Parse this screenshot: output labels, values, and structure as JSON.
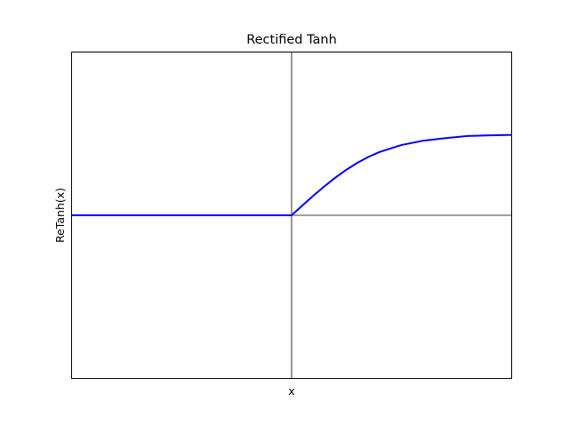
{
  "chart_data": {
    "type": "line",
    "title": "Rectified Tanh",
    "xlabel": "x",
    "ylabel": "ReTanh(x)",
    "xlim": [
      -5,
      5
    ],
    "ylim": [
      -1,
      1
    ],
    "grid": false,
    "ticks_visible": false,
    "reference_lines": {
      "x": 0,
      "y": 0
    },
    "series": [
      {
        "color": "#0000ff",
        "x": [
          -5,
          -4,
          -3,
          -2,
          -1,
          0,
          0.25,
          0.5,
          0.75,
          1,
          1.25,
          1.5,
          1.75,
          2,
          2.5,
          3,
          3.5,
          4,
          4.5,
          5
        ],
        "y": [
          0,
          0,
          0,
          0,
          0,
          0,
          0.0612,
          0.1212,
          0.1786,
          0.2318,
          0.28,
          0.3223,
          0.3583,
          0.388,
          0.4309,
          0.4574,
          0.4728,
          0.4854,
          0.4895,
          0.4927
        ]
      }
    ]
  }
}
